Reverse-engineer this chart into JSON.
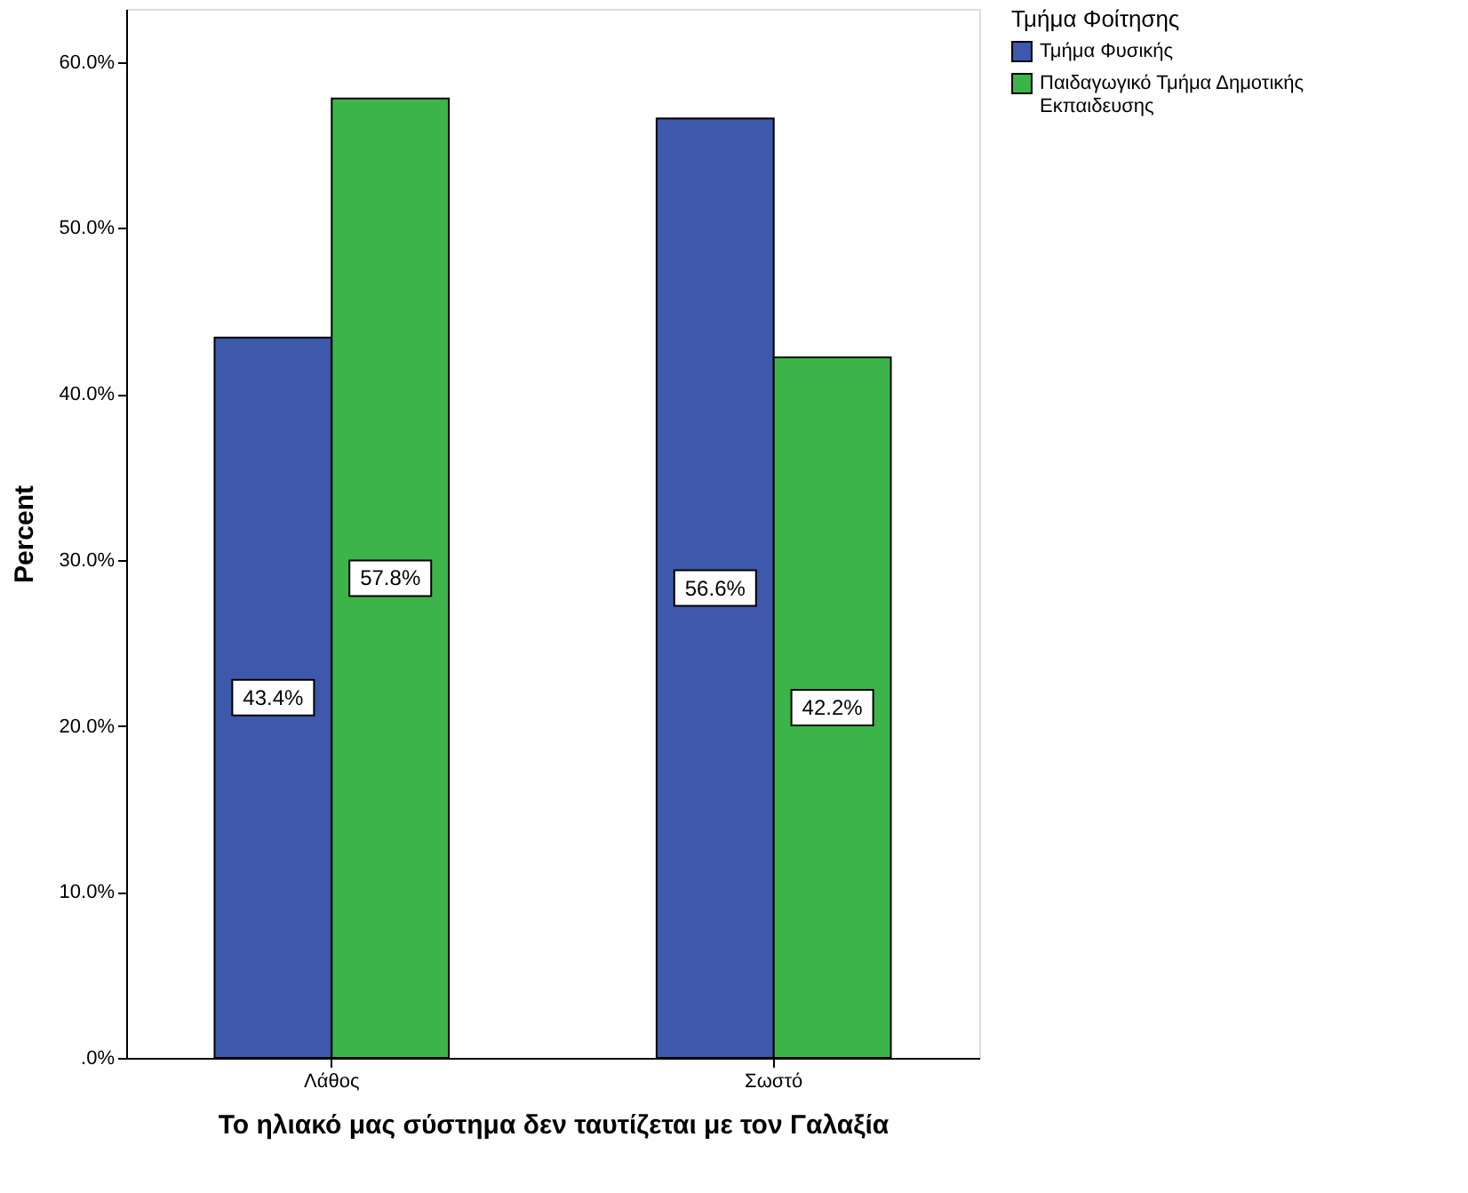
{
  "chart_data": {
    "type": "bar",
    "xlabel": "Το ηλιακό μας σύστημα δεν ταυτίζεται με τον Γαλαξία",
    "ylabel": "Percent",
    "legend_title": "Τμήμα Φοίτησης",
    "categories": [
      "Λάθος",
      "Σωστό"
    ],
    "series": [
      {
        "name": "Τμήμα Φυσικής",
        "color": "#3e58ac",
        "values": [
          43.4,
          56.6
        ],
        "value_labels": [
          "43.4%",
          "56.6%"
        ]
      },
      {
        "name": "Παιδαγωγικό Τμήμα Δημοτικής Εκπαιδευσης",
        "color": "#3cb44a",
        "values": [
          57.8,
          42.2
        ],
        "value_labels": [
          "57.8%",
          "42.2%"
        ]
      }
    ],
    "ylim": [
      0,
      63.2
    ],
    "yticks": [
      {
        "value": 0,
        "label": ".0%"
      },
      {
        "value": 10,
        "label": "10.0%"
      },
      {
        "value": 20,
        "label": "20.0%"
      },
      {
        "value": 30,
        "label": "30.0%"
      },
      {
        "value": 40,
        "label": "40.0%"
      },
      {
        "value": 50,
        "label": "50.0%"
      },
      {
        "value": 60,
        "label": "60.0%"
      }
    ],
    "grid": false,
    "legend": "top right"
  }
}
